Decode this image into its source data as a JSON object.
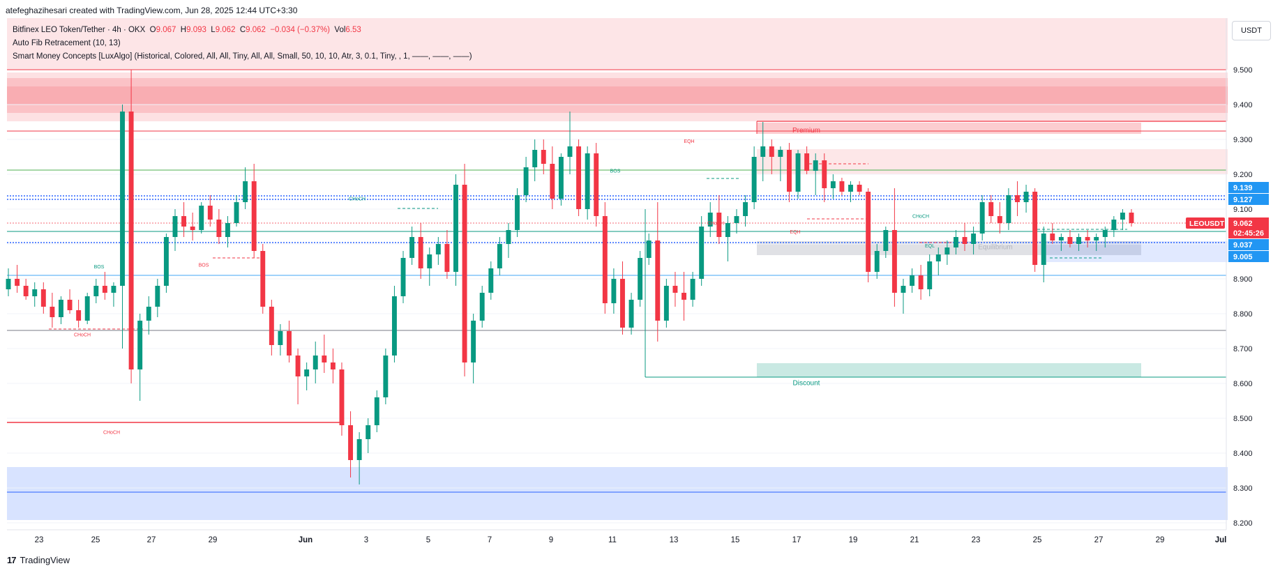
{
  "header": {
    "credit": "atefeghazihesari created with TradingView.com, Jun 28, 2025 12:44 UTC+3:30"
  },
  "legend": {
    "symbol": "Bitfinex LEO Token/Tether · 4h · OKX",
    "o_label": "O",
    "o": "9.067",
    "h_label": "H",
    "h": "9.093",
    "l_label": "L",
    "l": "9.062",
    "c_label": "C",
    "c": "9.062",
    "change": "−0.034 (−0.37%)",
    "vol_label": "Vol",
    "vol": "6.53",
    "indicator1": "Auto Fib Retracement (10, 13)",
    "indicator2": "Smart Money Concepts [LuxAlgo] (Historical, Colored, All, All, Tiny, All, All, Small, 50, 10, 10, Atr, 3, 0.1, Tiny, , 1, ——, ——, ——)"
  },
  "currency": "USDT",
  "footer": {
    "brand": "TradingView",
    "logo": "17"
  },
  "colors": {
    "up": "#089981",
    "down": "#f23645",
    "premium_fill": "#f23645",
    "discount_fill": "#089981",
    "fib_blue": "#2962ff",
    "grid": "#f0f3fa"
  },
  "chart_data": {
    "type": "candlestick",
    "symbol": "LEOUSDT",
    "timeframe": "4h",
    "ylim": [
      8.18,
      9.58
    ],
    "y_ticks": [
      "9.500",
      "9.400",
      "9.300",
      "9.200",
      "9.100",
      "9.000",
      "8.900",
      "8.800",
      "8.700",
      "8.600",
      "8.500",
      "8.400",
      "8.300",
      "8.200"
    ],
    "x_ticks": [
      "23",
      "25",
      "27",
      "29",
      "Jun",
      "3",
      "5",
      "7",
      "9",
      "11",
      "13",
      "15",
      "17",
      "19",
      "21",
      "23",
      "25",
      "27",
      "29",
      "Jul"
    ],
    "price_labels": [
      {
        "text": "9.139",
        "value": 9.139,
        "color": "#2196f3"
      },
      {
        "text": "9.127",
        "value": 9.127,
        "color": "#2196f3"
      },
      {
        "text": "LEOUSDT",
        "value": 9.067,
        "color": "#f23645"
      },
      {
        "text": "9.062",
        "value": 9.062,
        "color": "#f23645"
      },
      {
        "text": "02:45:26",
        "value": 9.062,
        "color": "#f23645"
      },
      {
        "text": "9.037",
        "value": 9.037,
        "color": "#2196f3"
      },
      {
        "text": "9.005",
        "value": 9.005,
        "color": "#2196f3"
      }
    ],
    "zone_labels": [
      {
        "text": "Premium",
        "x": 1156,
        "value": 9.32,
        "color": "#f23645"
      },
      {
        "text": "Equilibrium",
        "x": 1427,
        "value": 8.985,
        "color": "#b2b5be"
      },
      {
        "text": "Discount",
        "x": 1156,
        "value": 8.595,
        "color": "#089981"
      }
    ],
    "structure_labels": [
      {
        "text": "BOS",
        "x": 142,
        "value": 8.93,
        "color": "#089981"
      },
      {
        "text": "CHoCH",
        "x": 118,
        "value": 8.735,
        "color": "#f23645"
      },
      {
        "text": "CHoCH",
        "x": 160,
        "value": 8.455,
        "color": "#f23645"
      },
      {
        "text": "BOS",
        "x": 292,
        "value": 8.935,
        "color": "#f23645"
      },
      {
        "text": "CHoCH",
        "x": 512,
        "value": 9.125,
        "color": "#089981"
      },
      {
        "text": "BOS",
        "x": 882,
        "value": 9.205,
        "color": "#089981"
      },
      {
        "text": "EQH",
        "x": 988,
        "value": 9.29,
        "color": "#f23645"
      },
      {
        "text": "CHoCH",
        "x": 1026,
        "value": 9.055,
        "color": "#f23645"
      },
      {
        "text": "EQH",
        "x": 1140,
        "value": 9.03,
        "color": "#f23645"
      },
      {
        "text": "CHoCH",
        "x": 1320,
        "value": 9.075,
        "color": "#089981"
      },
      {
        "text": "EQL",
        "x": 1333,
        "value": 8.99,
        "color": "#089981"
      }
    ],
    "candles": []
  }
}
